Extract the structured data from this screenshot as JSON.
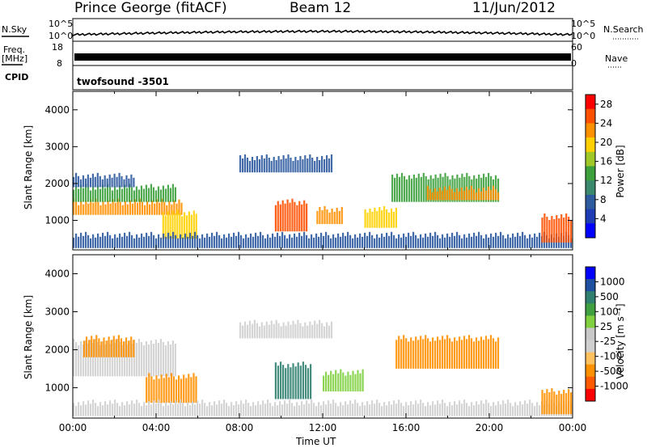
{
  "header": {
    "station": "Prince George (fitACF)",
    "beam": "Beam 12",
    "date": "11/Jun/2012"
  },
  "strip_panels": {
    "nsky": {
      "label": "N.Sky",
      "left_ticks": [
        "10^5",
        "10^0"
      ],
      "right_ticks": [
        "10^5",
        "10^0"
      ],
      "right_label": "N.Search"
    },
    "freq": {
      "label": "Freq.",
      "unit": "[MHz]",
      "left_ticks": [
        "18",
        "8"
      ],
      "right_ticks": [
        "60",
        "0"
      ],
      "right_label": "Nave"
    },
    "cpid": {
      "label": "CPID",
      "text": "twofsound -3501"
    }
  },
  "colors": {
    "power_scale": [
      "#0000ff",
      "#1e3cb4",
      "#2e5a9e",
      "#3c8a6e",
      "#3ca03c",
      "#a0c828",
      "#ffd000",
      "#ff9000",
      "#ff5000",
      "#ff0000"
    ],
    "velocity_scale": [
      "#ff0000",
      "#ff5a00",
      "#ff9000",
      "#ffc060",
      "#d0d0d0",
      "#c8c8c8",
      "#80d040",
      "#40a040",
      "#308070",
      "#2050a0",
      "#0000ff"
    ]
  },
  "chart_data": [
    {
      "type": "heatmap",
      "name": "power",
      "ylabel": "Slant Range [km]",
      "yticks": [
        "1000",
        "2000",
        "3000",
        "4000"
      ],
      "ylim": [
        200,
        4500
      ],
      "xlim_hours": [
        0,
        24
      ],
      "colorbar": {
        "label": "Power [dB]",
        "ticks": [
          "4",
          "8",
          "12",
          "16",
          "20",
          "24",
          "28"
        ],
        "range": [
          0,
          30
        ]
      },
      "regions": [
        {
          "t0": 0.0,
          "t1": 5.3,
          "r0": 1150,
          "r1": 1500,
          "value": 22
        },
        {
          "t0": 0.0,
          "t1": 5.0,
          "r0": 1500,
          "r1": 1900,
          "value": 14
        },
        {
          "t0": 0.0,
          "t1": 3.0,
          "r0": 1900,
          "r1": 2200,
          "value": 6
        },
        {
          "t0": 4.3,
          "t1": 6.0,
          "r0": 500,
          "r1": 1200,
          "value": 20
        },
        {
          "t0": 8.0,
          "t1": 12.5,
          "r0": 2300,
          "r1": 2700,
          "value": 6
        },
        {
          "t0": 9.7,
          "t1": 11.3,
          "r0": 700,
          "r1": 1500,
          "value": 26
        },
        {
          "t0": 11.7,
          "t1": 13.0,
          "r0": 900,
          "r1": 1300,
          "value": 22
        },
        {
          "t0": 14.0,
          "t1": 15.6,
          "r0": 800,
          "r1": 1300,
          "value": 18
        },
        {
          "t0": 15.3,
          "t1": 20.5,
          "r0": 1500,
          "r1": 2200,
          "value": 14
        },
        {
          "t0": 17.0,
          "t1": 20.5,
          "r0": 1550,
          "r1": 1850,
          "value": 22
        },
        {
          "t0": 0.0,
          "t1": 24.0,
          "r0": 250,
          "r1": 600,
          "value": 6
        },
        {
          "t0": 22.5,
          "t1": 24.0,
          "r0": 400,
          "r1": 1100,
          "value": 24
        }
      ]
    },
    {
      "type": "heatmap",
      "name": "velocity",
      "ylabel": "Slant Range [km]",
      "xlabel": "Time UT",
      "yticks": [
        "1000",
        "2000",
        "3000",
        "4000"
      ],
      "xticks": [
        "00:00",
        "04:00",
        "08:00",
        "12:00",
        "16:00",
        "20:00",
        "00:00"
      ],
      "ylim": [
        200,
        4500
      ],
      "xlim_hours": [
        0,
        24
      ],
      "colorbar": {
        "label": "Velocity [m s⁻¹]",
        "ticks": [
          "1000",
          "500",
          "100",
          "25",
          "-25",
          "-100",
          "-500",
          "-1000"
        ]
      },
      "regions": [
        {
          "t0": 0.0,
          "t1": 5.0,
          "r0": 1300,
          "r1": 2200,
          "value": 0
        },
        {
          "t0": 0.5,
          "t1": 3.0,
          "r0": 1800,
          "r1": 2300,
          "value": -150
        },
        {
          "t0": 3.5,
          "t1": 6.0,
          "r0": 600,
          "r1": 1300,
          "value": -250
        },
        {
          "t0": 8.0,
          "t1": 12.5,
          "r0": 2300,
          "r1": 2700,
          "value": 0
        },
        {
          "t0": 9.7,
          "t1": 11.5,
          "r0": 700,
          "r1": 1600,
          "value": 300
        },
        {
          "t0": 12.0,
          "t1": 14.0,
          "r0": 900,
          "r1": 1400,
          "value": 60
        },
        {
          "t0": 15.5,
          "t1": 20.5,
          "r0": 1500,
          "r1": 2300,
          "value": -250
        },
        {
          "t0": 0.0,
          "t1": 24.0,
          "r0": 250,
          "r1": 600,
          "value": 0
        },
        {
          "t0": 22.5,
          "t1": 24.0,
          "r0": 300,
          "r1": 900,
          "value": -300
        }
      ]
    }
  ]
}
